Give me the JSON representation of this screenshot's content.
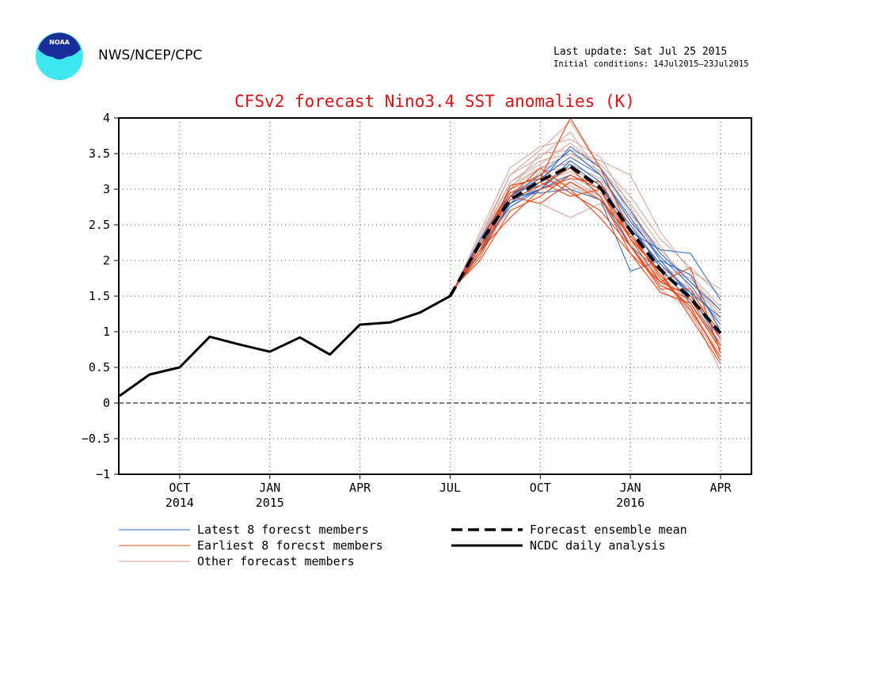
{
  "header": {
    "agency": "NWS/NCEP/CPC",
    "logo_text": "NOAA",
    "last_update": "Last update: Sat Jul 25 2015",
    "initial_conditions": "Initial conditions: 14Jul2015–23Jul2015"
  },
  "chart_data": {
    "type": "line",
    "title": "CFSv2 forecast Nino3.4 SST anomalies (K)",
    "xlabel": "",
    "ylabel": "",
    "ylim": [
      -1,
      4
    ],
    "yticks": [
      -1,
      -0.5,
      0,
      0.5,
      1,
      1.5,
      2,
      2.5,
      3,
      3.5,
      4
    ],
    "ytick_labels": [
      "−1",
      "−0.5",
      "0",
      "0.5",
      "1",
      "1.5",
      "2",
      "2.5",
      "3",
      "3.5",
      "4"
    ],
    "xlim_months": [
      0,
      21
    ],
    "xticks": [
      {
        "month": 2,
        "label": "OCT",
        "year": "2014"
      },
      {
        "month": 5,
        "label": "JAN",
        "year": "2015"
      },
      {
        "month": 8,
        "label": "APR",
        "year": ""
      },
      {
        "month": 11,
        "label": "JUL",
        "year": ""
      },
      {
        "month": 14,
        "label": "OCT",
        "year": ""
      },
      {
        "month": 17,
        "label": "JAN",
        "year": "2016"
      },
      {
        "month": 20,
        "label": "APR",
        "year": ""
      }
    ],
    "grid": true,
    "zero_line": true,
    "ncdc_analysis": {
      "name": "NCDC daily analysis",
      "x": [
        0,
        1,
        2,
        3,
        4,
        5,
        6,
        7,
        8,
        9,
        10,
        11
      ],
      "y": [
        0.1,
        0.4,
        0.5,
        0.93,
        0.82,
        0.72,
        0.92,
        0.68,
        1.1,
        1.13,
        1.27,
        1.5
      ]
    },
    "ensemble_mean": {
      "name": "Forecast ensemble mean",
      "x": [
        11,
        11.3,
        12,
        13,
        14,
        15,
        16,
        17,
        18,
        19,
        20
      ],
      "y": [
        1.5,
        1.72,
        2.25,
        2.85,
        3.12,
        3.32,
        3.02,
        2.42,
        1.87,
        1.47,
        0.98
      ]
    },
    "member_x": [
      11.3,
      12,
      13,
      14,
      15,
      16,
      17,
      18,
      19,
      20
    ],
    "latest_members": {
      "name": "Latest 8 forecst members",
      "color": "#2266cc",
      "y": [
        [
          1.72,
          2.2,
          2.9,
          3.2,
          3.55,
          3.2,
          2.6,
          2.0,
          1.5,
          0.9
        ],
        [
          1.7,
          2.1,
          2.8,
          3.0,
          3.4,
          3.1,
          2.4,
          2.15,
          2.1,
          1.45
        ],
        [
          1.74,
          2.3,
          2.95,
          3.05,
          3.3,
          2.9,
          2.2,
          1.85,
          1.55,
          1.2
        ],
        [
          1.72,
          2.25,
          2.85,
          3.0,
          3.2,
          3.0,
          2.5,
          1.9,
          1.4,
          0.75
        ],
        [
          1.7,
          2.15,
          2.8,
          3.1,
          3.6,
          3.3,
          2.7,
          2.1,
          1.7,
          1.3
        ],
        [
          1.73,
          2.2,
          2.9,
          2.95,
          3.0,
          2.85,
          1.85,
          2.0,
          1.8,
          1.0
        ],
        [
          1.71,
          2.2,
          2.75,
          3.0,
          3.35,
          3.05,
          2.45,
          1.95,
          1.55,
          0.8
        ],
        [
          1.72,
          2.3,
          2.9,
          3.15,
          3.45,
          3.2,
          2.55,
          2.05,
          1.65,
          1.1
        ]
      ]
    },
    "earliest_members": {
      "name": "Earliest 8 forecst members",
      "color": "#ee4411",
      "y": [
        [
          1.72,
          2.1,
          3.05,
          3.15,
          4.0,
          3.3,
          2.4,
          1.75,
          1.35,
          0.6
        ],
        [
          1.7,
          2.0,
          2.7,
          2.9,
          3.2,
          3.0,
          2.3,
          1.7,
          1.9,
          0.7
        ],
        [
          1.73,
          2.2,
          2.9,
          3.3,
          3.0,
          2.6,
          2.1,
          1.7,
          1.5,
          1.0
        ],
        [
          1.71,
          2.15,
          2.6,
          3.0,
          3.15,
          3.1,
          2.3,
          1.85,
          1.2,
          0.55
        ],
        [
          1.72,
          2.25,
          3.0,
          3.2,
          2.95,
          2.7,
          2.2,
          1.6,
          1.6,
          0.9
        ],
        [
          1.7,
          2.05,
          2.85,
          3.05,
          3.3,
          2.9,
          2.1,
          1.55,
          1.4,
          0.75
        ],
        [
          1.72,
          2.1,
          2.9,
          2.8,
          3.1,
          2.85,
          2.35,
          1.8,
          1.3,
          0.65
        ],
        [
          1.71,
          2.2,
          2.95,
          3.1,
          2.9,
          3.0,
          2.2,
          1.65,
          1.45,
          0.8
        ]
      ]
    },
    "other_members": {
      "name": "Other forecast members",
      "color": "#d4a398",
      "y": [
        [
          1.72,
          2.3,
          3.2,
          3.55,
          3.95,
          3.3,
          2.8,
          2.2,
          1.6,
          1.1
        ],
        [
          1.7,
          2.15,
          2.9,
          3.1,
          3.25,
          3.0,
          2.5,
          1.9,
          1.75,
          1.3
        ],
        [
          1.74,
          2.4,
          3.3,
          3.6,
          3.7,
          3.45,
          2.75,
          2.0,
          1.8,
          1.35
        ],
        [
          1.71,
          2.2,
          2.9,
          3.0,
          3.1,
          2.9,
          2.2,
          1.75,
          1.3,
          0.45
        ],
        [
          1.72,
          2.25,
          3.1,
          3.4,
          3.5,
          3.35,
          2.9,
          2.3,
          1.9,
          1.5
        ],
        [
          1.7,
          2.1,
          2.8,
          3.25,
          3.3,
          3.05,
          2.35,
          1.8,
          1.25,
          0.6
        ],
        [
          1.73,
          2.35,
          3.2,
          3.45,
          3.8,
          3.2,
          2.6,
          2.1,
          1.7,
          1.2
        ],
        [
          1.72,
          2.2,
          2.95,
          3.15,
          3.05,
          2.85,
          2.2,
          1.7,
          1.35,
          0.85
        ],
        [
          1.71,
          2.3,
          3.0,
          3.5,
          3.55,
          3.4,
          3.2,
          2.4,
          1.85,
          1.6
        ],
        [
          1.72,
          2.2,
          2.85,
          3.0,
          3.15,
          2.9,
          2.3,
          1.85,
          1.45,
          0.95
        ],
        [
          1.7,
          2.15,
          3.05,
          3.3,
          3.5,
          3.25,
          2.7,
          2.0,
          1.55,
          1.05
        ],
        [
          1.73,
          2.25,
          2.9,
          2.8,
          2.6,
          2.8,
          2.25,
          1.6,
          1.3,
          0.7
        ],
        [
          1.72,
          2.3,
          3.1,
          3.35,
          3.65,
          3.3,
          2.65,
          2.15,
          1.7,
          1.25
        ],
        [
          1.71,
          2.2,
          2.9,
          3.2,
          3.4,
          3.1,
          2.5,
          1.95,
          1.5,
          1.0
        ],
        [
          1.72,
          2.25,
          3.0,
          3.3,
          3.35,
          3.15,
          2.55,
          1.9,
          1.6,
          1.15
        ],
        [
          1.7,
          2.1,
          2.75,
          3.05,
          3.2,
          2.95,
          2.4,
          1.8,
          1.4,
          0.8
        ]
      ]
    },
    "legend": [
      {
        "label": "Latest 8 forecst members",
        "style": "thin-blue"
      },
      {
        "label": "Earliest 8 forecst members",
        "style": "thin-red"
      },
      {
        "label": "Other forecast members",
        "style": "thin-pink"
      },
      {
        "label": "Forecast ensemble mean",
        "style": "thick-dashed"
      },
      {
        "label": "NCDC daily analysis",
        "style": "thick-solid"
      }
    ]
  }
}
